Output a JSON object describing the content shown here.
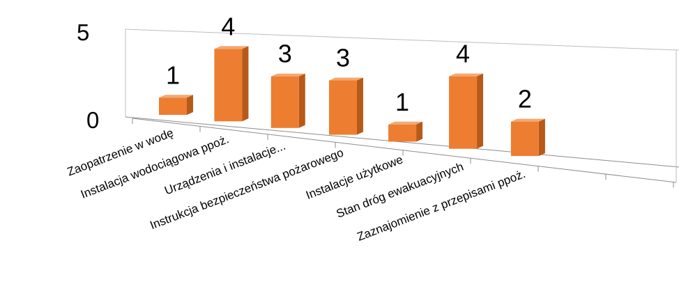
{
  "chart_data": {
    "type": "bar",
    "title": "",
    "xlabel": "",
    "ylabel": "",
    "ylim": [
      0,
      5
    ],
    "yticks": [
      0,
      5
    ],
    "grid": false,
    "legend": "none",
    "categories": [
      "Zaopatrzenie w wodę",
      "Instalacja wodociągowa ppoż.",
      "Urządzenia i instalacje...",
      "Instrukcja bezpieczeństwa pożarowego",
      "Instalacje użytkowe",
      "Stan dróg ewakuacyjnych",
      "Zaznajomienie z przepisami ppoż."
    ],
    "values": [
      1,
      4,
      3,
      3,
      1,
      4,
      2
    ],
    "colors": {
      "bar_front": "#ED7D31",
      "bar_side": "#B65A1A",
      "bar_top": "#F4A872"
    }
  }
}
